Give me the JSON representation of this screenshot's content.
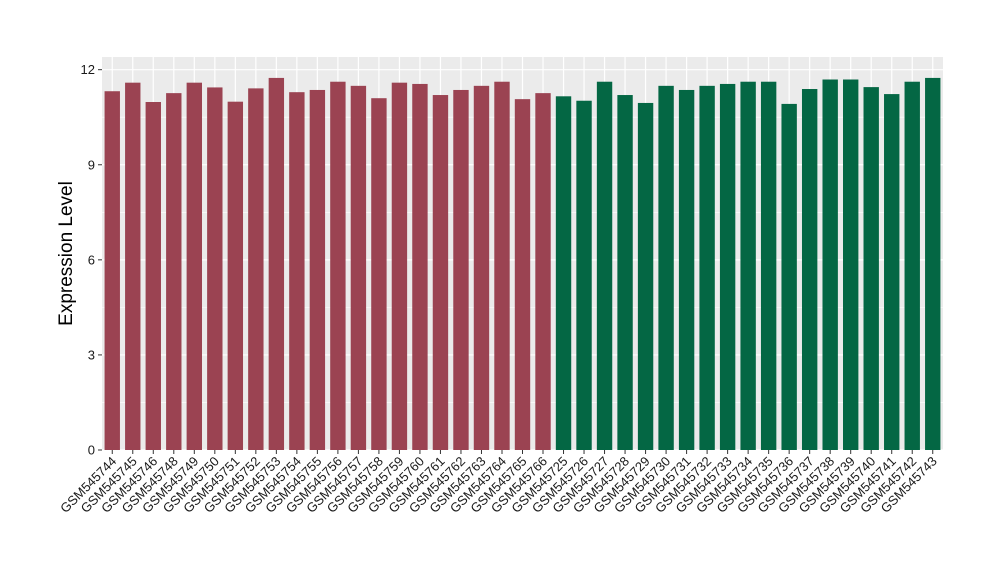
{
  "chart_data": {
    "type": "bar",
    "title": "",
    "xlabel": "",
    "ylabel": "Expression Level",
    "ylim": [
      0,
      12.4
    ],
    "yticks": [
      0,
      3,
      6,
      9,
      12
    ],
    "grid": true,
    "legend": "none",
    "categories": [
      "GSM545744",
      "GSM545745",
      "GSM545746",
      "GSM545748",
      "GSM545749",
      "GSM545750",
      "GSM545751",
      "GSM545752",
      "GSM545753",
      "GSM545754",
      "GSM545755",
      "GSM545756",
      "GSM545757",
      "GSM545758",
      "GSM545759",
      "GSM545760",
      "GSM545761",
      "GSM545762",
      "GSM545763",
      "GSM545764",
      "GSM545765",
      "GSM545766",
      "GSM545725",
      "GSM545726",
      "GSM545727",
      "GSM545728",
      "GSM545729",
      "GSM545730",
      "GSM545731",
      "GSM545732",
      "GSM545733",
      "GSM545734",
      "GSM545735",
      "GSM545736",
      "GSM545737",
      "GSM545738",
      "GSM545739",
      "GSM545740",
      "GSM545741",
      "GSM545742",
      "GSM545743"
    ],
    "values": [
      11.32,
      11.59,
      10.98,
      11.26,
      11.59,
      11.44,
      10.99,
      11.41,
      11.74,
      11.29,
      11.36,
      11.62,
      11.49,
      11.1,
      11.59,
      11.55,
      11.2,
      11.36,
      11.49,
      11.62,
      11.07,
      11.26,
      11.16,
      11.02,
      11.62,
      11.2,
      10.95,
      11.49,
      11.36,
      11.49,
      11.55,
      11.62,
      11.62,
      10.92,
      11.39,
      11.69,
      11.69,
      11.45,
      11.23,
      11.62,
      11.74
    ],
    "bar_colors": [
      "#9b4352",
      "#9b4352",
      "#9b4352",
      "#9b4352",
      "#9b4352",
      "#9b4352",
      "#9b4352",
      "#9b4352",
      "#9b4352",
      "#9b4352",
      "#9b4352",
      "#9b4352",
      "#9b4352",
      "#9b4352",
      "#9b4352",
      "#9b4352",
      "#9b4352",
      "#9b4352",
      "#9b4352",
      "#9b4352",
      "#9b4352",
      "#9b4352",
      "#046744",
      "#046744",
      "#046744",
      "#046744",
      "#046744",
      "#046744",
      "#046744",
      "#046744",
      "#046744",
      "#046744",
      "#046744",
      "#046744",
      "#046744",
      "#046744",
      "#046744",
      "#046744",
      "#046744",
      "#046744",
      "#046744"
    ],
    "panel_background": "#ebebeb",
    "grid_color": "#ffffff"
  }
}
